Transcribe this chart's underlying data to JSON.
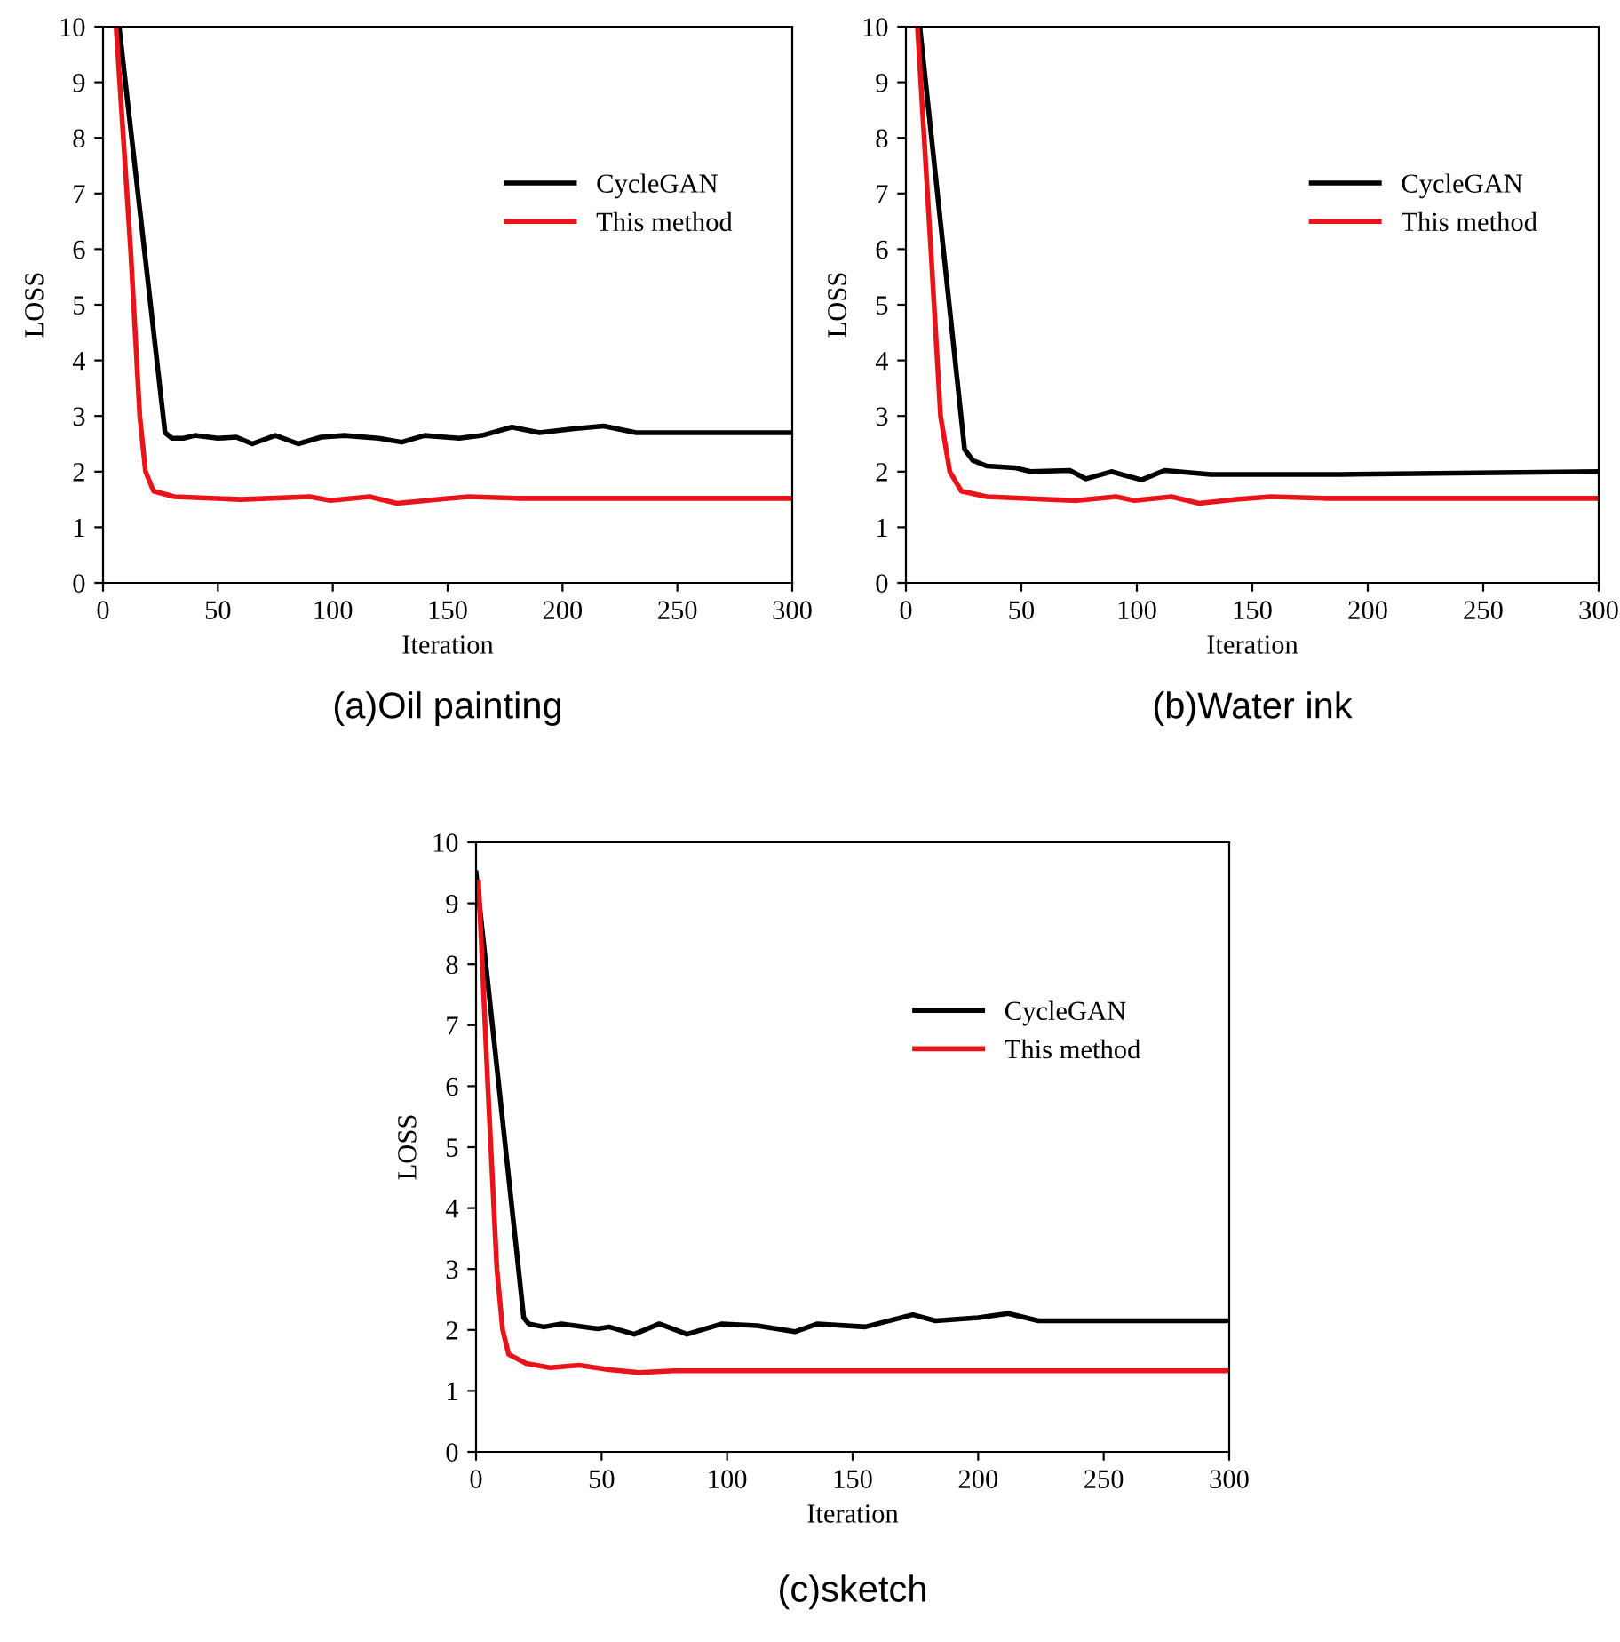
{
  "chart_data": [
    {
      "type": "line",
      "title": "(a)Oil painting",
      "xlabel": "Iteration",
      "ylabel": "LOSS",
      "xlim": [
        0,
        300
      ],
      "xticks": [
        0,
        50,
        100,
        150,
        200,
        250,
        300
      ],
      "ylim": [
        0,
        10
      ],
      "yticks": [
        0,
        1,
        2,
        3,
        4,
        5,
        6,
        7,
        8,
        9,
        10
      ],
      "legend": "right",
      "grid": false,
      "line_style": "solid",
      "marker": "none",
      "series": [
        {
          "name": "CycleGAN",
          "color": "#000000",
          "x": [
            7,
            27,
            30,
            35,
            40,
            50,
            58,
            65,
            75,
            85,
            95,
            105,
            120,
            130,
            140,
            155,
            165,
            178,
            190,
            205,
            218,
            232,
            250,
            300
          ],
          "values": [
            10,
            2.7,
            2.6,
            2.6,
            2.65,
            2.6,
            2.62,
            2.5,
            2.65,
            2.5,
            2.62,
            2.65,
            2.6,
            2.53,
            2.65,
            2.6,
            2.65,
            2.8,
            2.7,
            2.77,
            2.82,
            2.7,
            2.7,
            2.7
          ]
        },
        {
          "name": "This method",
          "color": "#e8141a",
          "x": [
            5.7,
            12,
            16,
            18.5,
            22,
            31,
            60,
            90,
            99,
            116,
            128,
            146,
            159,
            180,
            300
          ],
          "values": [
            10,
            6,
            3,
            2,
            1.65,
            1.55,
            1.5,
            1.55,
            1.48,
            1.55,
            1.43,
            1.5,
            1.55,
            1.52,
            1.52
          ]
        }
      ]
    },
    {
      "type": "line",
      "title": "(b)Water ink",
      "xlabel": "Iteration",
      "ylabel": "LOSS",
      "xlim": [
        0,
        300
      ],
      "xticks": [
        0,
        50,
        100,
        150,
        200,
        250,
        300
      ],
      "ylim": [
        0,
        10
      ],
      "yticks": [
        0,
        1,
        2,
        3,
        4,
        5,
        6,
        7,
        8,
        9,
        10
      ],
      "legend": "right",
      "grid": false,
      "line_style": "solid",
      "marker": "none",
      "series": [
        {
          "name": "CycleGAN",
          "color": "#000000",
          "x": [
            6,
            25.4,
            29,
            35,
            47,
            54,
            71,
            78,
            89,
            102,
            112,
            132,
            188,
            300
          ],
          "values": [
            10,
            2.4,
            2.2,
            2.1,
            2.07,
            2.0,
            2.02,
            1.87,
            2.0,
            1.85,
            2.02,
            1.95,
            1.95,
            2.0
          ]
        },
        {
          "name": "This method",
          "color": "#e8141a",
          "x": [
            5,
            10.8,
            15,
            19,
            24,
            35,
            61,
            74,
            91,
            99,
            115,
            127,
            143,
            158,
            181,
            300
          ],
          "values": [
            10,
            6,
            3,
            2,
            1.65,
            1.55,
            1.5,
            1.48,
            1.55,
            1.48,
            1.55,
            1.43,
            1.5,
            1.55,
            1.52,
            1.52
          ]
        }
      ]
    },
    {
      "type": "line",
      "title": "(c)sketch",
      "xlabel": "Iteration",
      "ylabel": "LOSS",
      "xlim": [
        0,
        300
      ],
      "xticks": [
        0,
        50,
        100,
        150,
        200,
        250,
        300
      ],
      "ylim": [
        0,
        10
      ],
      "yticks": [
        0,
        1,
        2,
        3,
        4,
        5,
        6,
        7,
        8,
        9,
        10
      ],
      "legend": "right",
      "grid": false,
      "line_style": "solid",
      "marker": "none",
      "series": [
        {
          "name": "CycleGAN",
          "color": "#000000",
          "x": [
            0,
            19,
            21,
            27,
            34,
            48.5,
            53,
            63,
            73,
            84,
            98,
            112,
            127,
            136,
            155,
            174,
            183,
            200,
            212,
            224,
            300
          ],
          "values": [
            9.5,
            2.2,
            2.1,
            2.05,
            2.1,
            2.02,
            2.05,
            1.93,
            2.1,
            1.93,
            2.1,
            2.07,
            1.97,
            2.1,
            2.05,
            2.25,
            2.15,
            2.2,
            2.27,
            2.15,
            2.15
          ]
        },
        {
          "name": "This method",
          "color": "#e8141a",
          "x": [
            1,
            4.7,
            8.3,
            10.6,
            13,
            20,
            29.5,
            41,
            53,
            65,
            79,
            300
          ],
          "values": [
            9.35,
            6,
            3,
            2,
            1.6,
            1.45,
            1.38,
            1.42,
            1.35,
            1.3,
            1.33,
            1.33
          ]
        }
      ]
    }
  ]
}
